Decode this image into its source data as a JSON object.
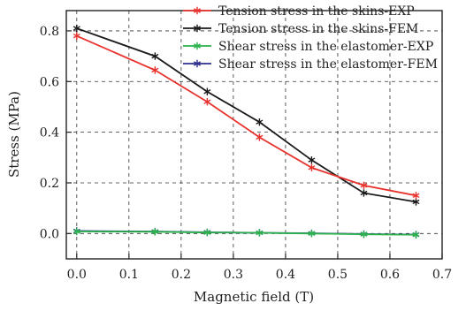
{
  "chart_data": {
    "type": "line",
    "xlabel": "Magnetic field (T)",
    "ylabel": "Stress (MPa)",
    "xlim": [
      -0.02,
      0.7
    ],
    "ylim": [
      -0.1,
      0.88
    ],
    "xticks": [
      "0.0",
      "0.1",
      "0.2",
      "0.3",
      "0.4",
      "0.5",
      "0.6",
      "0.7"
    ],
    "yticks": [
      "0.0",
      "0.2",
      "0.4",
      "0.6",
      "0.8"
    ],
    "grid": true,
    "legend_position": "top-right",
    "series": [
      {
        "name": "Tension stress in the skins-EXP",
        "color": "#e8322d",
        "marker": "star",
        "x": [
          0.0,
          0.15,
          0.25,
          0.35,
          0.45,
          0.55,
          0.65
        ],
        "y": [
          0.78,
          0.645,
          0.52,
          0.38,
          0.26,
          0.19,
          0.15
        ]
      },
      {
        "name": "Tension stress in the skins-FEM",
        "color": "#1a1a1a",
        "marker": "star",
        "x": [
          0.0,
          0.15,
          0.25,
          0.35,
          0.45,
          0.55,
          0.65
        ],
        "y": [
          0.81,
          0.7,
          0.56,
          0.44,
          0.29,
          0.16,
          0.125
        ]
      },
      {
        "name": "Shear stress in the elastomer-EXP",
        "color": "#2bb24c",
        "marker": "star",
        "x": [
          0.0,
          0.15,
          0.25,
          0.35,
          0.45,
          0.55,
          0.65
        ],
        "y": [
          0.008,
          0.007,
          0.004,
          0.003,
          0.0,
          -0.003,
          -0.005
        ]
      },
      {
        "name": "Shear stress in the elastomer-FEM",
        "color": "#2f2f8f",
        "marker": "star",
        "x": [
          0.0,
          0.15,
          0.25,
          0.35,
          0.45,
          0.55,
          0.65
        ],
        "y": [
          0.01,
          0.008,
          0.005,
          0.003,
          0.001,
          -0.002,
          -0.004
        ]
      }
    ]
  }
}
